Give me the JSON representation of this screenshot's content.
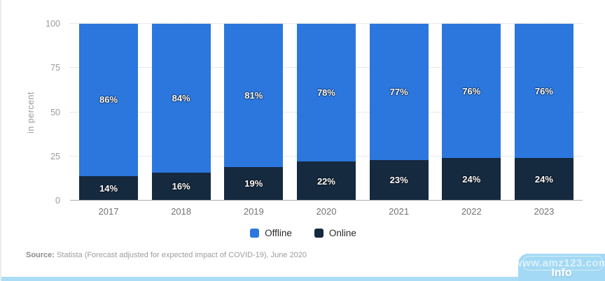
{
  "chart_data": {
    "type": "bar",
    "stacked": true,
    "categories": [
      "2017",
      "2018",
      "2019",
      "2020",
      "2021",
      "2022",
      "2023"
    ],
    "series": [
      {
        "name": "Offline",
        "color": "#2b77dd",
        "values": [
          86,
          84,
          81,
          78,
          77,
          76,
          76
        ],
        "labels": [
          "86%",
          "84%",
          "81%",
          "78%",
          "77%",
          "76%",
          "76%"
        ]
      },
      {
        "name": "Online",
        "color": "#15293f",
        "values": [
          14,
          16,
          19,
          22,
          23,
          24,
          24
        ],
        "labels": [
          "14%",
          "16%",
          "19%",
          "22%",
          "23%",
          "24%",
          "24%"
        ]
      }
    ],
    "ylabel": "in percent",
    "ylim": [
      0,
      100
    ],
    "yticks": [
      0,
      25,
      50,
      75,
      100
    ],
    "grid": "dotted-horizontal",
    "legend_position": "bottom"
  },
  "source": {
    "label": "Source:",
    "text": "Statista (Forecast adjusted for expected impact of COVID-19), June 2020"
  },
  "watermark": {
    "text": "www.amz123.com",
    "info_label": "Info",
    "panel_color": "#a3d9f4"
  }
}
